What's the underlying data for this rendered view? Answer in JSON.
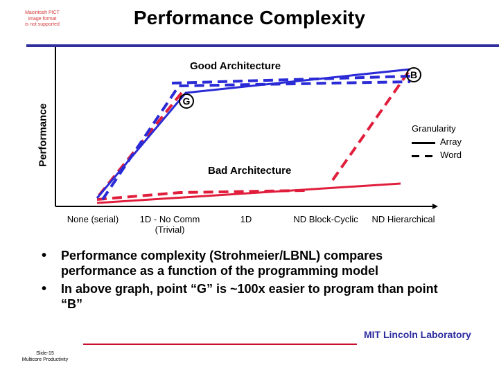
{
  "header": {
    "pict_note": [
      "Macintosh PICT",
      "image format",
      "is not supported"
    ],
    "title": "Performance Complexity"
  },
  "diagram": {
    "y_axis_label": "Performance",
    "good_label": "Good Architecture",
    "bad_label": "Bad Architecture",
    "point_g": "G",
    "point_b": "B",
    "x_ticks": [
      "None (serial)",
      "1D - No Comm (Trivial)",
      "1D",
      "ND Block-Cyclic",
      "ND Hierarchical"
    ],
    "legend": {
      "title": "Granularity",
      "array": "Array",
      "word": "Word"
    },
    "colors": {
      "good": "#2a2ad6",
      "bad": "#e01e3c",
      "axis": "#000000"
    }
  },
  "bullets": [
    "Performance complexity (Strohmeier/LBNL) compares performance as a function of the programming model",
    "In above graph, point “G” is ~100x easier to program than point “B”"
  ],
  "footer": {
    "slide_number": "Slide-15",
    "slide_subtitle": "Multicore Productivity",
    "organization": "MIT Lincoln Laboratory"
  }
}
